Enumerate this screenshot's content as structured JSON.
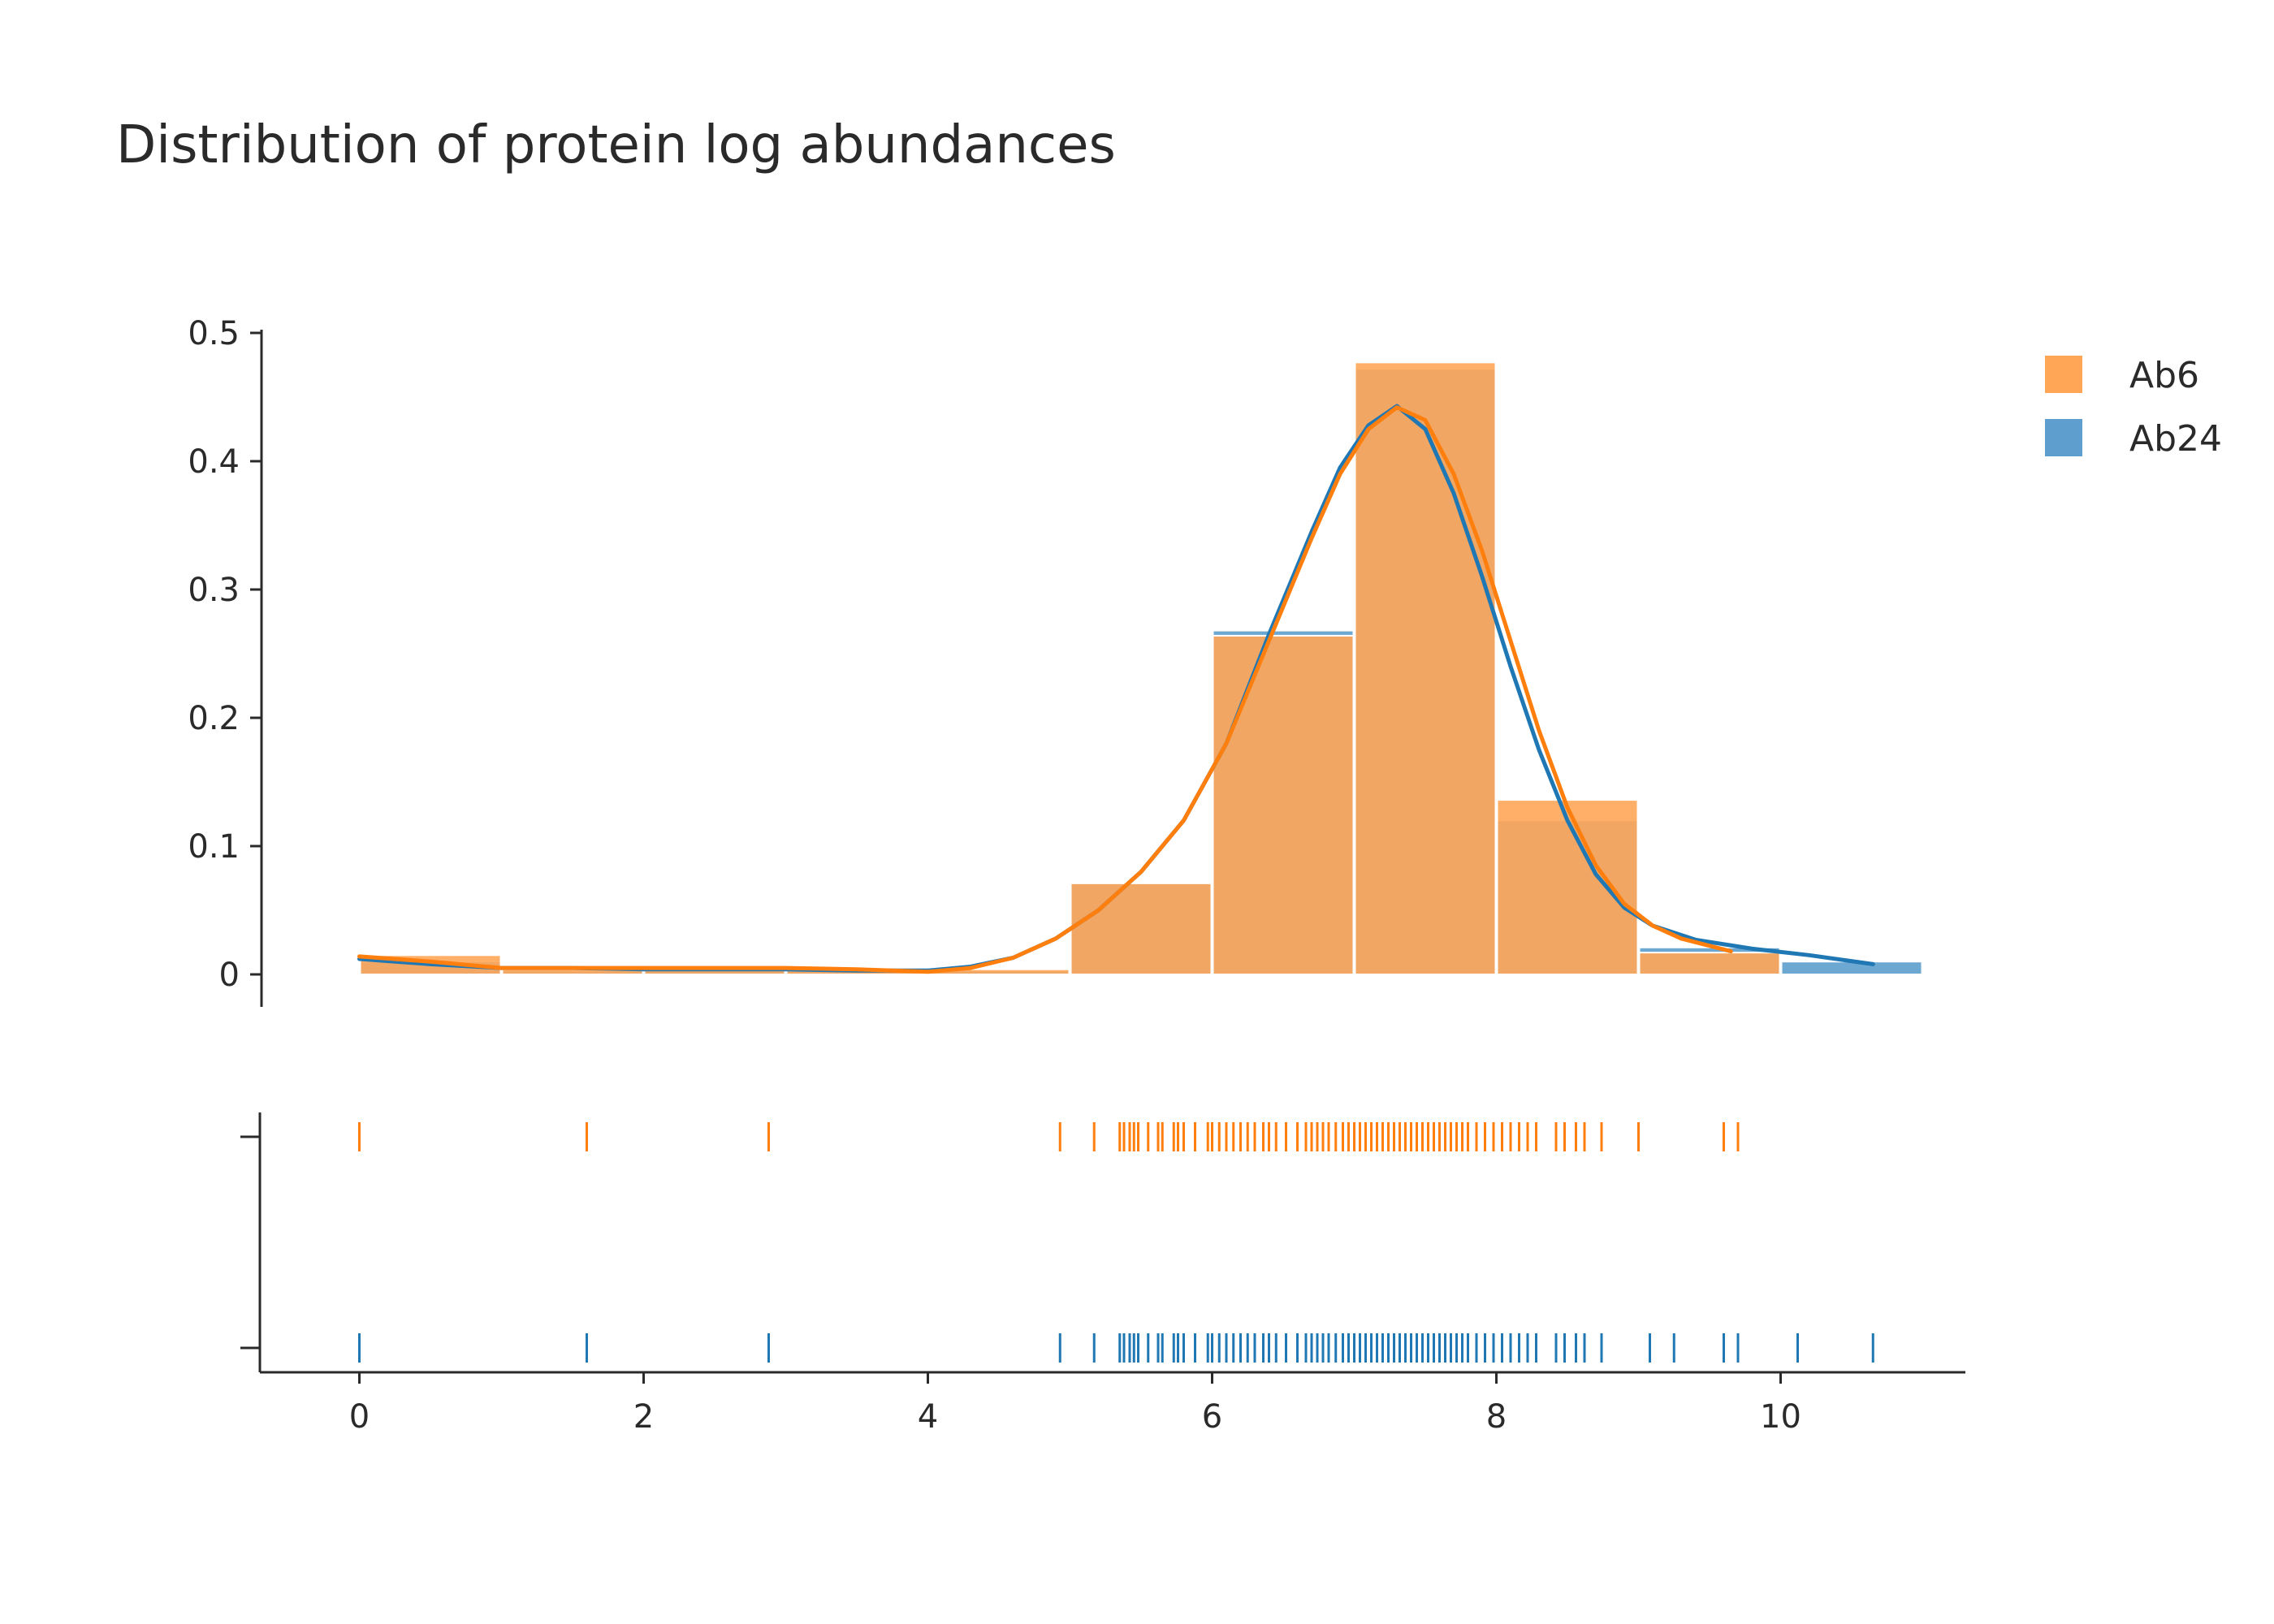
{
  "chart_data": {
    "type": "histogram",
    "title": "Distribution of protein log abundances",
    "xlabel": "",
    "ylabel": "",
    "xlim": [
      -0.7,
      11.3
    ],
    "ylim": [
      0,
      0.5
    ],
    "x_ticks": [
      0,
      2,
      4,
      6,
      8,
      10
    ],
    "y_ticks": [
      0,
      0.1,
      0.2,
      0.3,
      0.4,
      0.5
    ],
    "x_tick_labels": [
      "0",
      "2",
      "4",
      "6",
      "8",
      "10"
    ],
    "y_tick_labels": [
      "0",
      "0.1",
      "0.2",
      "0.3",
      "0.4",
      "0.5"
    ],
    "legend_position": "top-right",
    "grid": false,
    "bin_edges": [
      0,
      1,
      2,
      3,
      4,
      5,
      6,
      7,
      8,
      9,
      10,
      11
    ],
    "series": [
      {
        "name": "Ab6",
        "color": "#ff7f0e",
        "bar_color": "#ffa656",
        "density": [
          0.015,
          0.004,
          0.004,
          0.004,
          0.004,
          0.071,
          0.264,
          0.477,
          0.136,
          0.017,
          0.0
        ],
        "kde": [
          [
            0,
            0.014
          ],
          [
            0.5,
            0.01
          ],
          [
            1,
            0.005
          ],
          [
            1.5,
            0.005
          ],
          [
            2,
            0.005
          ],
          [
            2.5,
            0.005
          ],
          [
            3,
            0.005
          ],
          [
            3.5,
            0.004
          ],
          [
            4,
            0.002
          ],
          [
            4.3,
            0.005
          ],
          [
            4.6,
            0.013
          ],
          [
            4.9,
            0.028
          ],
          [
            5.2,
            0.05
          ],
          [
            5.5,
            0.08
          ],
          [
            5.8,
            0.12
          ],
          [
            6.1,
            0.18
          ],
          [
            6.4,
            0.26
          ],
          [
            6.7,
            0.34
          ],
          [
            6.9,
            0.39
          ],
          [
            7.1,
            0.425
          ],
          [
            7.3,
            0.442
          ],
          [
            7.5,
            0.432
          ],
          [
            7.7,
            0.39
          ],
          [
            7.9,
            0.33
          ],
          [
            8.1,
            0.26
          ],
          [
            8.3,
            0.19
          ],
          [
            8.5,
            0.13
          ],
          [
            8.7,
            0.085
          ],
          [
            8.9,
            0.055
          ],
          [
            9.1,
            0.038
          ],
          [
            9.3,
            0.028
          ],
          [
            9.65,
            0.018
          ]
        ],
        "rug": [
          0.0,
          1.6,
          2.88,
          4.93,
          5.17,
          5.35,
          5.38,
          5.42,
          5.45,
          5.48,
          5.55,
          5.62,
          5.65,
          5.73,
          5.76,
          5.8,
          5.88,
          5.97,
          6.0,
          6.05,
          6.1,
          6.15,
          6.2,
          6.25,
          6.3,
          6.36,
          6.4,
          6.45,
          6.52,
          6.6,
          6.66,
          6.7,
          6.74,
          6.78,
          6.82,
          6.87,
          6.92,
          6.96,
          7.0,
          7.04,
          7.08,
          7.12,
          7.16,
          7.2,
          7.24,
          7.28,
          7.32,
          7.36,
          7.4,
          7.44,
          7.48,
          7.52,
          7.56,
          7.6,
          7.64,
          7.68,
          7.72,
          7.76,
          7.8,
          7.86,
          7.92,
          7.98,
          8.04,
          8.1,
          8.16,
          8.22,
          8.28,
          8.42,
          8.48,
          8.56,
          8.62,
          8.74,
          9.0,
          9.6,
          9.7
        ]
      },
      {
        "name": "Ab24",
        "color": "#1f77b4",
        "bar_color": "#5d9ece",
        "density": [
          0.01,
          0.003,
          0.003,
          0.003,
          0.003,
          0.072,
          0.268,
          0.472,
          0.12,
          0.021,
          0.01
        ],
        "kde": [
          [
            0,
            0.012
          ],
          [
            0.5,
            0.008
          ],
          [
            1,
            0.005
          ],
          [
            1.5,
            0.005
          ],
          [
            2,
            0.004
          ],
          [
            2.5,
            0.004
          ],
          [
            3,
            0.004
          ],
          [
            3.5,
            0.003
          ],
          [
            4,
            0.003
          ],
          [
            4.3,
            0.006
          ],
          [
            4.6,
            0.013
          ],
          [
            4.9,
            0.028
          ],
          [
            5.2,
            0.05
          ],
          [
            5.5,
            0.08
          ],
          [
            5.8,
            0.12
          ],
          [
            6.1,
            0.18
          ],
          [
            6.4,
            0.265
          ],
          [
            6.7,
            0.345
          ],
          [
            6.9,
            0.395
          ],
          [
            7.1,
            0.428
          ],
          [
            7.3,
            0.443
          ],
          [
            7.5,
            0.425
          ],
          [
            7.7,
            0.375
          ],
          [
            7.9,
            0.31
          ],
          [
            8.1,
            0.24
          ],
          [
            8.3,
            0.175
          ],
          [
            8.5,
            0.12
          ],
          [
            8.7,
            0.078
          ],
          [
            8.9,
            0.052
          ],
          [
            9.1,
            0.038
          ],
          [
            9.4,
            0.027
          ],
          [
            9.8,
            0.02
          ],
          [
            10.2,
            0.015
          ],
          [
            10.65,
            0.008
          ]
        ],
        "rug": [
          0.0,
          1.6,
          2.88,
          4.93,
          5.17,
          5.35,
          5.38,
          5.42,
          5.45,
          5.48,
          5.55,
          5.62,
          5.65,
          5.73,
          5.76,
          5.8,
          5.88,
          5.97,
          6.0,
          6.05,
          6.1,
          6.15,
          6.2,
          6.25,
          6.3,
          6.36,
          6.4,
          6.45,
          6.52,
          6.6,
          6.66,
          6.7,
          6.74,
          6.78,
          6.82,
          6.87,
          6.92,
          6.96,
          7.0,
          7.04,
          7.08,
          7.12,
          7.16,
          7.2,
          7.24,
          7.28,
          7.32,
          7.36,
          7.4,
          7.44,
          7.48,
          7.52,
          7.56,
          7.6,
          7.64,
          7.68,
          7.72,
          7.76,
          7.8,
          7.86,
          7.92,
          7.98,
          8.04,
          8.1,
          8.16,
          8.22,
          8.28,
          8.42,
          8.48,
          8.56,
          8.62,
          8.74,
          9.08,
          9.25,
          9.6,
          9.7,
          10.12,
          10.65
        ]
      }
    ]
  }
}
